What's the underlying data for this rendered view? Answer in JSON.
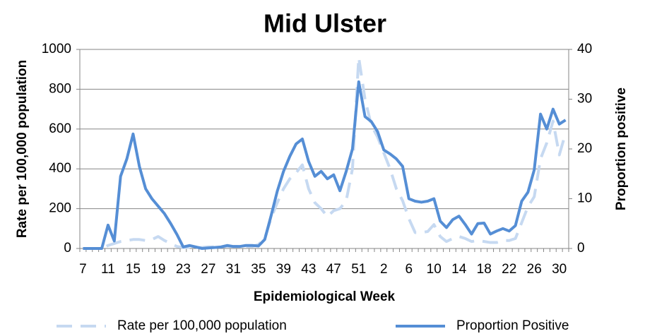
{
  "chart_data": {
    "type": "line",
    "title": "Mid Ulster",
    "x_label": "Epidemiological Week",
    "y_label": "Rate per 100,000 population",
    "y2_label": "Proportion positive",
    "categories": [
      "7",
      null,
      null,
      null,
      "11",
      null,
      null,
      null,
      "15",
      null,
      null,
      null,
      "19",
      null,
      null,
      null,
      "23",
      null,
      null,
      null,
      "27",
      null,
      null,
      null,
      "31",
      null,
      null,
      null,
      "35",
      null,
      null,
      null,
      "39",
      null,
      null,
      null,
      "43",
      null,
      null,
      null,
      "47",
      null,
      null,
      null,
      "51",
      null,
      null,
      null,
      "2",
      null,
      null,
      null,
      "6",
      null,
      null,
      null,
      "10",
      null,
      null,
      null,
      "14",
      null,
      null,
      null,
      "18",
      null,
      null,
      null,
      "22",
      null,
      null,
      null,
      "26",
      null,
      null,
      null,
      "30",
      null
    ],
    "series": [
      {
        "name": "Rate per 100,000 population",
        "color": "#c6d9f1",
        "style": "dashed",
        "axis": "y",
        "values": [
          0,
          0,
          0,
          0,
          15,
          25,
          35,
          40,
          45,
          45,
          40,
          45,
          60,
          40,
          25,
          10,
          5,
          5,
          5,
          5,
          8,
          8,
          8,
          10,
          10,
          10,
          10,
          10,
          20,
          50,
          150,
          230,
          300,
          350,
          380,
          420,
          300,
          230,
          200,
          160,
          190,
          200,
          240,
          400,
          960,
          750,
          620,
          560,
          480,
          400,
          300,
          240,
          150,
          80,
          80,
          85,
          120,
          60,
          35,
          50,
          60,
          50,
          35,
          40,
          35,
          30,
          30,
          40,
          40,
          50,
          130,
          210,
          260,
          450,
          530,
          640,
          470,
          580
        ]
      },
      {
        "name": "Proportion Positive",
        "color": "#558ed5",
        "style": "solid",
        "axis": "y2",
        "values": [
          0,
          0,
          0,
          0,
          4.7,
          1.5,
          14.5,
          18,
          23,
          16.5,
          12,
          10,
          8.5,
          7,
          5,
          2.8,
          0.3,
          0.6,
          0.3,
          0,
          0.1,
          0.2,
          0.3,
          0.6,
          0.4,
          0.4,
          0.6,
          0.6,
          0.5,
          1.8,
          6.5,
          11.5,
          15.5,
          18.5,
          21,
          22,
          17.5,
          14.5,
          15.5,
          14,
          14.8,
          11.6,
          15.5,
          20,
          33.5,
          26.5,
          25.5,
          23.5,
          19.8,
          19,
          18,
          16.5,
          10,
          9.5,
          9.3,
          9.5,
          10,
          5.5,
          4.2,
          5.8,
          6.5,
          4.8,
          2.9,
          5,
          5.1,
          2.9,
          3.5,
          4,
          3.5,
          4.6,
          9.5,
          11.3,
          15.8,
          27,
          24,
          28,
          25,
          25.8
        ]
      }
    ],
    "ylim": [
      0,
      1000
    ],
    "yticks": [
      0,
      200,
      400,
      600,
      800,
      1000
    ],
    "y2lim": [
      0,
      40
    ],
    "y2ticks": [
      0,
      10,
      20,
      30,
      40
    ],
    "grid": true,
    "legend": "bottom"
  }
}
